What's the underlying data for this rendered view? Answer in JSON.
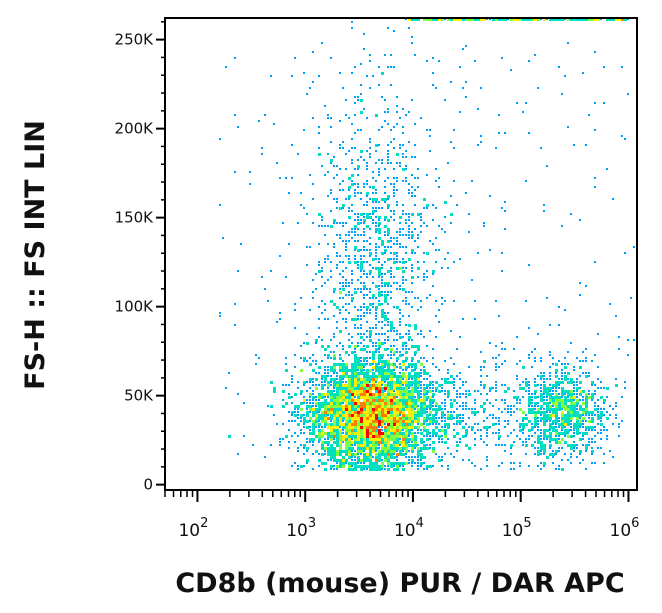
{
  "chart_data": {
    "type": "scatter",
    "title": "",
    "xlabel": "CD8b (mouse) PUR / DAR APC",
    "ylabel": "FS-H :: FS INT LIN",
    "x_scale": "log",
    "xlim": [
      50,
      1200000
    ],
    "ylim": [
      -3000,
      262144
    ],
    "x_ticks": [
      {
        "value": 100,
        "base": "10",
        "exp": "2"
      },
      {
        "value": 1000,
        "base": "10",
        "exp": "3"
      },
      {
        "value": 10000,
        "base": "10",
        "exp": "4"
      },
      {
        "value": 100000,
        "base": "10",
        "exp": "5"
      },
      {
        "value": 1000000,
        "base": "10",
        "exp": "6"
      }
    ],
    "y_ticks": [
      {
        "value": 0,
        "label": "0"
      },
      {
        "value": 50000,
        "label": "50K"
      },
      {
        "value": 100000,
        "label": "100K"
      },
      {
        "value": 150000,
        "label": "150K"
      },
      {
        "value": 200000,
        "label": "200K"
      },
      {
        "value": 250000,
        "label": "250K"
      }
    ],
    "grid": false,
    "colormap": [
      "#0000ff",
      "#00a0ff",
      "#00e0c0",
      "#80ff40",
      "#ffee00",
      "#ff8000",
      "#ff0000"
    ],
    "populations": [
      {
        "x_center": 4000,
        "y_center": 40000,
        "x_log_spread": 0.3,
        "y_spread": 15000,
        "events": 5200
      },
      {
        "x_center": 4500,
        "y_center": 130000,
        "x_log_spread": 0.28,
        "y_spread": 45000,
        "events": 1100
      },
      {
        "x_center": 250000,
        "y_center": 40000,
        "x_log_spread": 0.2,
        "y_spread": 12000,
        "events": 900
      },
      {
        "x_center": 40000,
        "y_center": 40000,
        "x_log_spread": 0.55,
        "y_spread": 15000,
        "events": 500
      }
    ],
    "y_saturation_value": 262144
  }
}
